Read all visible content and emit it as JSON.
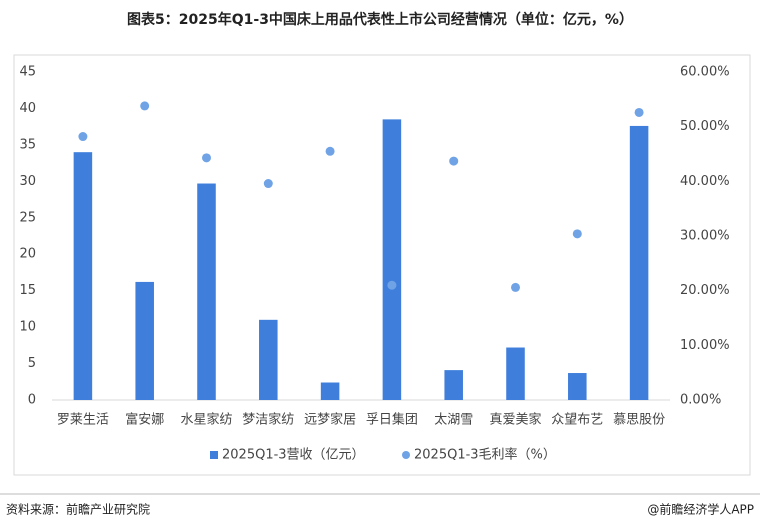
{
  "chart_data": {
    "type": "bar",
    "title": "图表5：2025年Q1-3中国床上用品代表性上市公司经营情况（单位：亿元，%）",
    "categories": [
      "罗莱生活",
      "富安娜",
      "水星家纺",
      "梦洁家纺",
      "远梦家居",
      "孚日集团",
      "太湖雪",
      "真爱美家",
      "众望布艺",
      "慕思股份"
    ],
    "series": [
      {
        "name": "2025Q1-3营收（亿元）",
        "color": "#3f7fdb",
        "values": [
          34,
          16.2,
          29.7,
          11,
          2.4,
          38.5,
          4.1,
          7.2,
          3.7,
          37.6
        ]
      },
      {
        "name": "2025Q1-3毛利率（%）",
        "color": "#6fa3e6",
        "type": "scatter",
        "axis": "y2",
        "values": [
          48.2,
          53.8,
          44.3,
          39.6,
          45.5,
          21.0,
          43.7,
          20.6,
          30.4,
          52.6
        ]
      }
    ],
    "ylim": [
      0,
      45
    ],
    "yticks": [
      0,
      5,
      10,
      15,
      20,
      25,
      30,
      35,
      40,
      45
    ],
    "y2lim": [
      0,
      60
    ],
    "y2ticks": [
      {
        "value": 0,
        "label": "0.00%"
      },
      {
        "value": 10,
        "label": "10.00%"
      },
      {
        "value": 20,
        "label": "20.00%"
      },
      {
        "value": 30,
        "label": "30.00%"
      },
      {
        "value": 40,
        "label": "40.00%"
      },
      {
        "value": 50,
        "label": "50.00%"
      },
      {
        "value": 60,
        "label": "60.00%"
      }
    ],
    "grid": false,
    "legend": "bottom"
  },
  "footer": {
    "source": "资料来源：前瞻产业研究院",
    "credit": "@前瞻经济学人APP"
  }
}
